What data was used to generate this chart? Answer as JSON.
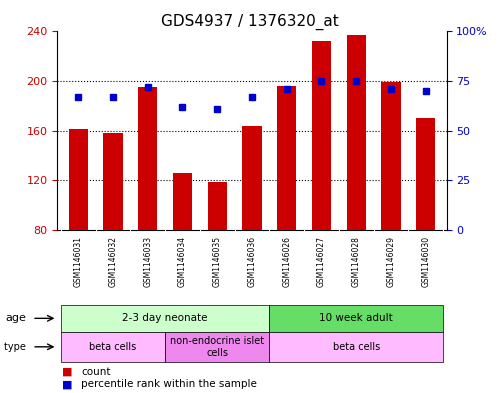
{
  "title": "GDS4937 / 1376320_at",
  "samples": [
    "GSM1146031",
    "GSM1146032",
    "GSM1146033",
    "GSM1146034",
    "GSM1146035",
    "GSM1146036",
    "GSM1146026",
    "GSM1146027",
    "GSM1146028",
    "GSM1146029",
    "GSM1146030"
  ],
  "counts": [
    161,
    158,
    195,
    126,
    119,
    164,
    196,
    232,
    237,
    199,
    170
  ],
  "percentiles": [
    67,
    67,
    72,
    62,
    61,
    67,
    71,
    75,
    75,
    71,
    70
  ],
  "ylim_left": [
    80,
    240
  ],
  "ylim_right": [
    0,
    100
  ],
  "yticks_left": [
    80,
    120,
    160,
    200,
    240
  ],
  "yticks_right": [
    0,
    25,
    50,
    75,
    100
  ],
  "ytick_labels_right": [
    "0",
    "25",
    "50",
    "75",
    "100%"
  ],
  "bar_color": "#cc0000",
  "dot_color": "#0000cc",
  "grid_color": "#000000",
  "title_fontsize": 11,
  "age_groups": [
    {
      "label": "2-3 day neonate",
      "start": 0,
      "end": 6,
      "color": "#ccffcc"
    },
    {
      "label": "10 week adult",
      "start": 6,
      "end": 11,
      "color": "#66dd66"
    }
  ],
  "cell_type_groups": [
    {
      "label": "beta cells",
      "start": 0,
      "end": 3,
      "color": "#ffbbff"
    },
    {
      "label": "non-endocrine islet\ncells",
      "start": 3,
      "end": 6,
      "color": "#ee88ee"
    },
    {
      "label": "beta cells",
      "start": 6,
      "end": 11,
      "color": "#ffbbff"
    }
  ],
  "legend_count_color": "#cc0000",
  "legend_dot_color": "#0000cc",
  "bg_color": "#ffffff",
  "plot_bg_color": "#ffffff",
  "tick_label_color_left": "#cc0000",
  "tick_label_color_right": "#0000cc",
  "label_bg_color": "#cccccc"
}
